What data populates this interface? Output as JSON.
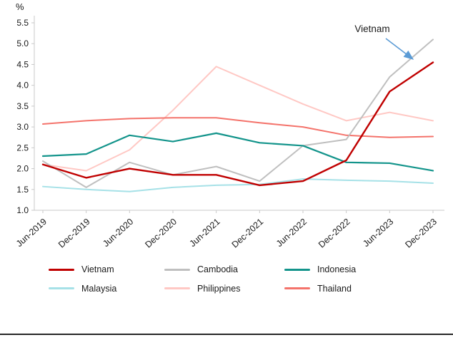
{
  "chart_data": {
    "type": "line",
    "title": "",
    "xlabel": "",
    "ylabel": "%",
    "ylim": [
      1.0,
      5.5
    ],
    "ytick_step": 0.5,
    "grid": false,
    "legend_position": "bottom",
    "categories": [
      "Jun-2019",
      "Dec-2019",
      "Jun-2020",
      "Dec-2020",
      "Jun-2021",
      "Dec-2021",
      "Jun-2022",
      "Dec-2022",
      "Jun-2023",
      "Dec-2023"
    ],
    "series": [
      {
        "name": "Vietnam",
        "color": "#c00000",
        "width": 2.4,
        "values": [
          2.1,
          1.78,
          2.0,
          1.85,
          1.85,
          1.6,
          1.7,
          2.2,
          3.85,
          4.55
        ]
      },
      {
        "name": "Cambodia",
        "color": "#bfbfbf",
        "width": 2.0,
        "values": [
          2.18,
          1.55,
          2.15,
          1.85,
          2.05,
          1.7,
          2.55,
          2.7,
          4.2,
          5.1
        ]
      },
      {
        "name": "Indonesia",
        "color": "#13948b",
        "width": 2.2,
        "values": [
          2.3,
          2.35,
          2.8,
          2.65,
          2.85,
          2.62,
          2.55,
          2.15,
          2.13,
          1.95
        ]
      },
      {
        "name": "Malaysia",
        "color": "#a6e1e7",
        "width": 2.0,
        "values": [
          1.57,
          1.5,
          1.45,
          1.55,
          1.6,
          1.62,
          1.75,
          1.72,
          1.7,
          1.65
        ]
      },
      {
        "name": "Philippines",
        "color": "#ffc8c4",
        "width": 2.0,
        "values": [
          2.1,
          1.95,
          2.45,
          3.4,
          4.45,
          4.0,
          3.55,
          3.15,
          3.35,
          3.15
        ]
      },
      {
        "name": "Thailand",
        "color": "#f4736b",
        "width": 2.0,
        "values": [
          3.07,
          3.15,
          3.2,
          3.22,
          3.22,
          3.1,
          3.0,
          2.8,
          2.75,
          2.77
        ]
      }
    ],
    "draw_order": [
      "Philippines",
      "Malaysia",
      "Thailand",
      "Cambodia",
      "Indonesia",
      "Vietnam"
    ],
    "annotation": {
      "text": "Vietnam",
      "arrow_color": "#5b9bd5"
    }
  }
}
